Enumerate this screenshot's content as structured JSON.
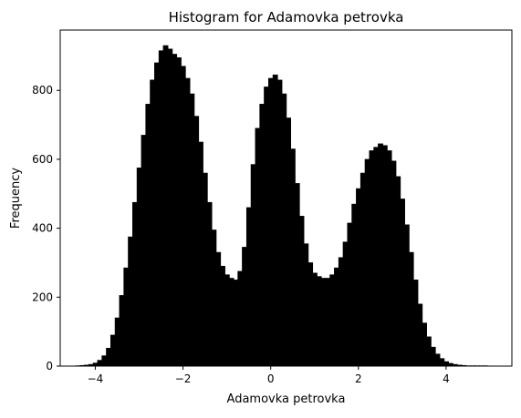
{
  "chart_data": {
    "type": "bar",
    "title": "Histogram for Adamovka petrovka",
    "xlabel": "Adamovka petrovka",
    "ylabel": "Frequency",
    "xlim": [
      -4.8,
      5.5
    ],
    "ylim": [
      0,
      975
    ],
    "xticks": [
      -4,
      -2,
      0,
      2,
      4
    ],
    "xtick_labels": [
      "−4",
      "−2",
      "0",
      "2",
      "4"
    ],
    "yticks": [
      0,
      200,
      400,
      600,
      800
    ],
    "ytick_labels": [
      "0",
      "200",
      "400",
      "600",
      "800"
    ],
    "bar_color": "#000000",
    "bin_width": 0.1,
    "series": [
      {
        "x": [
          -4.4,
          -4.3,
          -4.2,
          -4.1,
          -4.0,
          -3.9,
          -3.8,
          -3.7,
          -3.6,
          -3.5,
          -3.4,
          -3.3,
          -3.2,
          -3.1,
          -3.0,
          -2.9,
          -2.8,
          -2.7,
          -2.6,
          -2.5,
          -2.4,
          -2.3,
          -2.2,
          -2.1,
          -2.0,
          -1.9,
          -1.8,
          -1.7,
          -1.6,
          -1.5,
          -1.4,
          -1.3,
          -1.2,
          -1.1,
          -1.0,
          -0.9,
          -0.8,
          -0.7,
          -0.6,
          -0.5,
          -0.4,
          -0.3,
          -0.2,
          -0.1,
          0.0,
          0.1,
          0.2,
          0.3,
          0.4,
          0.5,
          0.6,
          0.7,
          0.8,
          0.9,
          1.0,
          1.1,
          1.2,
          1.3,
          1.4,
          1.5,
          1.6,
          1.7,
          1.8,
          1.9,
          2.0,
          2.1,
          2.2,
          2.3,
          2.4,
          2.5,
          2.6,
          2.7,
          2.8,
          2.9,
          3.0,
          3.1,
          3.2,
          3.3,
          3.4,
          3.5,
          3.6,
          3.7,
          3.8,
          3.9,
          4.0,
          4.1,
          4.2,
          4.3,
          4.4,
          4.5,
          4.6,
          4.7,
          4.8,
          4.9,
          5.0,
          5.1,
          5.2
        ],
        "values": [
          1,
          2,
          3,
          5,
          9,
          17,
          30,
          52,
          90,
          140,
          205,
          285,
          375,
          475,
          575,
          670,
          760,
          830,
          880,
          915,
          930,
          920,
          905,
          895,
          870,
          835,
          790,
          725,
          650,
          560,
          475,
          395,
          330,
          290,
          265,
          255,
          250,
          275,
          345,
          460,
          585,
          690,
          760,
          810,
          835,
          845,
          830,
          790,
          720,
          630,
          530,
          435,
          355,
          300,
          270,
          260,
          255,
          255,
          265,
          285,
          315,
          360,
          415,
          470,
          515,
          560,
          600,
          625,
          635,
          645,
          640,
          625,
          595,
          550,
          485,
          410,
          330,
          250,
          180,
          125,
          85,
          55,
          35,
          22,
          13,
          8,
          5,
          3,
          2,
          1,
          1,
          1,
          1,
          1,
          0,
          0,
          0
        ]
      }
    ]
  }
}
